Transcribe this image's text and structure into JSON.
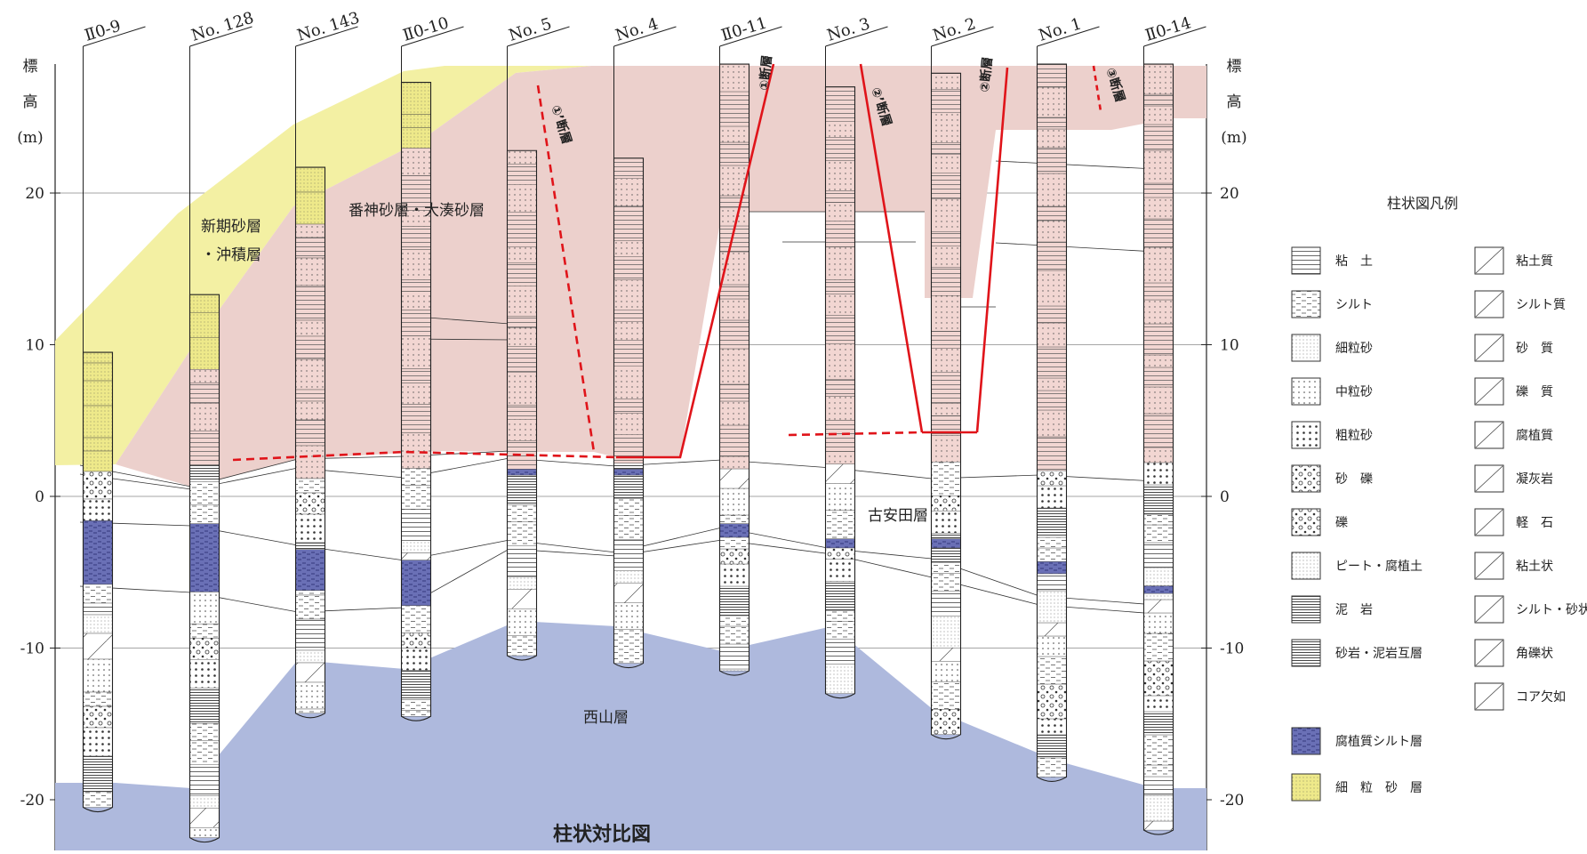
{
  "title": "柱状対比図",
  "axis": {
    "unit_chars": [
      "標",
      "高",
      "(m)"
    ],
    "ticks": [
      20,
      10,
      0,
      -10,
      -20
    ],
    "ylim": [
      -23,
      28
    ]
  },
  "colors": {
    "new_sand": "#f3f0a3",
    "banjin": "#ecd0cc",
    "nishiyama": "#aeb9dd",
    "humic_silt": "#6a70b6",
    "fault": "#e0141a",
    "fine_sand_layer": "#eee98a"
  },
  "boreholes": [
    {
      "name": "Ⅱ0-9",
      "top": 9.5,
      "bottom": -20.5
    },
    {
      "name": "No. 128",
      "top": 13.3,
      "bottom": -22.5
    },
    {
      "name": "No. 143",
      "top": 21.7,
      "bottom": -14.3
    },
    {
      "name": "Ⅱ0-10",
      "top": 27.3,
      "bottom": -14.5
    },
    {
      "name": "No. 5",
      "top": 22.8,
      "bottom": -10.5
    },
    {
      "name": "No. 4",
      "top": 22.3,
      "bottom": -11.0
    },
    {
      "name": "Ⅱ0-11",
      "top": 28.5,
      "bottom": -11.5
    },
    {
      "name": "No. 3",
      "top": 27.0,
      "bottom": -13.0
    },
    {
      "name": "No. 2",
      "top": 27.9,
      "bottom": -15.7
    },
    {
      "name": "No. 1",
      "top": 28.5,
      "bottom": -18.5
    },
    {
      "name": "Ⅱ0-14",
      "top": 28.5,
      "bottom": -22.0
    }
  ],
  "layers": {
    "new_sand": "新期砂層\n・沖積層",
    "new_sand_line1": "新期砂層",
    "new_sand_line2": "・沖積層",
    "banjin": "番神砂層・大湊砂層",
    "koyasuda": "古安田層",
    "nishiyama": "西山層"
  },
  "faults": [
    "①’断層",
    "①断層",
    "②’断層",
    "②断層",
    "③断層"
  ],
  "legend": {
    "title": "柱状図凡例",
    "left": [
      "粘　土",
      "シルト",
      "細粒砂",
      "中粒砂",
      "粗粒砂",
      "砂　礫",
      "礫",
      "ピート・腐植土",
      "泥　岩",
      "砂岩・泥岩互層"
    ],
    "right": [
      "粘土質",
      "シルト質",
      "砂　質",
      "礫　質",
      "腐植質",
      "凝灰岩",
      "軽　石",
      "粘土状",
      "シルト・砂状",
      "角礫状",
      "コア欠如"
    ],
    "colored": [
      "腐植質シルト層",
      "細　粒　砂　層"
    ]
  }
}
